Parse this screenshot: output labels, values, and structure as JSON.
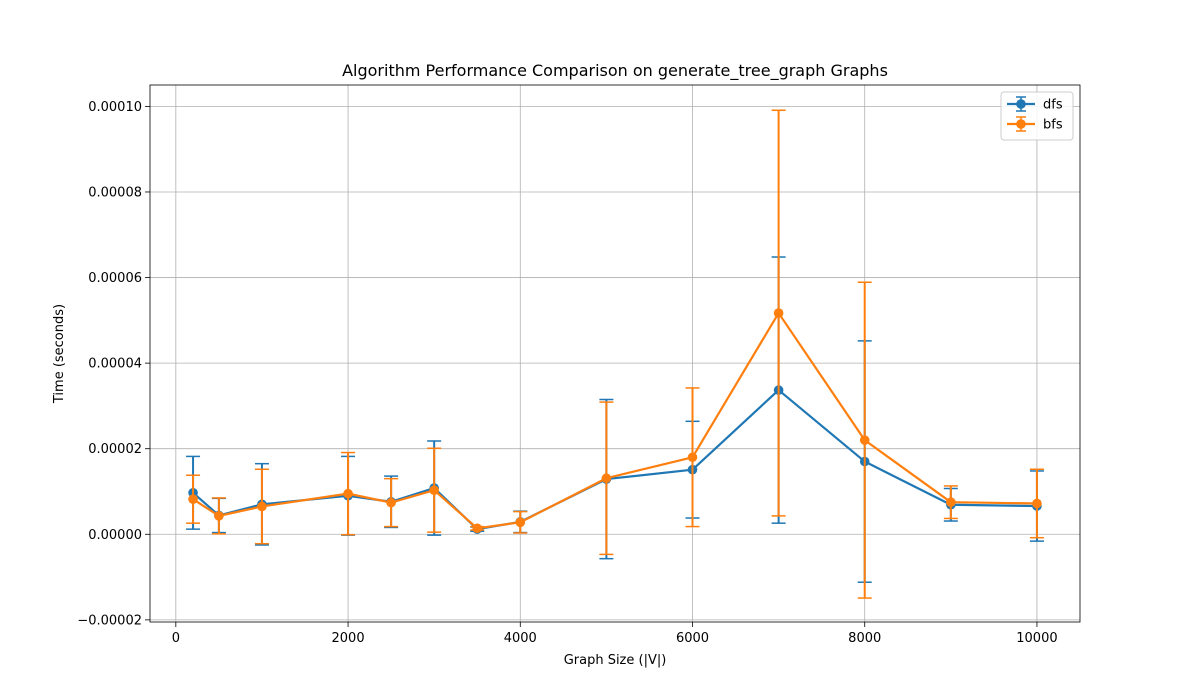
{
  "chart_data": {
    "type": "line",
    "title": "Algorithm Performance Comparison on generate_tree_graph Graphs",
    "xlabel": "Graph Size (|V|)",
    "ylabel": "Time (seconds)",
    "xlim": [
      -300,
      10500
    ],
    "ylim": [
      -2.05e-05,
      0.000105
    ],
    "xticks": [
      0,
      2000,
      4000,
      6000,
      8000,
      10000
    ],
    "xtick_labels": [
      "0",
      "2000",
      "4000",
      "6000",
      "8000",
      "10000"
    ],
    "yticks": [
      -2e-05,
      0.0,
      2e-05,
      4e-05,
      6e-05,
      8e-05,
      0.0001
    ],
    "ytick_labels": [
      "−0.00002",
      "0.00000",
      "0.00002",
      "0.00004",
      "0.00006",
      "0.00008",
      "0.00010"
    ],
    "grid": true,
    "legend_position": "top-right",
    "x": [
      200,
      500,
      1000,
      2000,
      2500,
      3000,
      3500,
      4000,
      5000,
      6000,
      7000,
      8000,
      9000,
      10000
    ],
    "series": [
      {
        "name": "dfs",
        "color": "#1f77b4",
        "values": [
          9.7e-06,
          4.4e-06,
          7e-06,
          9e-06,
          7.6e-06,
          1.08e-05,
          1.2e-06,
          2.9e-06,
          1.29e-05,
          1.51e-05,
          3.37e-05,
          1.7e-05,
          6.9e-06,
          6.6e-06
        ],
        "error": [
          8.5e-06,
          4e-06,
          9.5e-06,
          9.2e-06,
          6e-06,
          1.1e-05,
          5e-07,
          2.5e-06,
          1.86e-05,
          1.13e-05,
          3.11e-05,
          2.82e-05,
          3.8e-06,
          8.2e-06
        ]
      },
      {
        "name": "bfs",
        "color": "#ff7f0e",
        "values": [
          8.2e-06,
          4.3e-06,
          6.5e-06,
          9.5e-06,
          7.4e-06,
          1.03e-05,
          1.4e-06,
          2.8e-06,
          1.31e-05,
          1.8e-05,
          5.17e-05,
          2.2e-05,
          7.5e-06,
          7.2e-06
        ],
        "error": [
          5.6e-06,
          4.2e-06,
          8.7e-06,
          9.6e-06,
          5.6e-06,
          9.8e-06,
          4e-07,
          2.5e-06,
          1.78e-05,
          1.62e-05,
          4.74e-05,
          3.69e-05,
          3.8e-06,
          8e-06
        ]
      }
    ]
  }
}
